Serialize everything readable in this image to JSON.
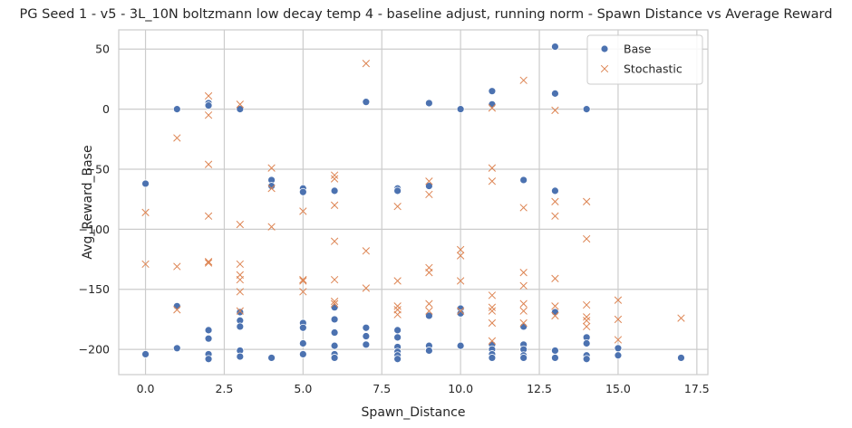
{
  "chart_data": {
    "type": "scatter",
    "title": "PG Seed 1 - v5 - 3L_10N boltzmann low decay temp 4 - baseline adjust, running norm - Spawn Distance vs Average Reward",
    "xlabel": "Spawn_Distance",
    "ylabel": "Avg_Reward_Base",
    "xlim": [
      -0.85,
      17.85
    ],
    "ylim": [
      -221,
      66
    ],
    "xticks": [
      0.0,
      2.5,
      5.0,
      7.5,
      10.0,
      12.5,
      15.0,
      17.5
    ],
    "xtick_labels": [
      "0.0",
      "2.5",
      "5.0",
      "7.5",
      "10.0",
      "12.5",
      "15.0",
      "17.5"
    ],
    "yticks": [
      -200,
      -150,
      -100,
      -50,
      0,
      50
    ],
    "ytick_labels": [
      "−200",
      "−150",
      "−100",
      "−50",
      "0",
      "50"
    ],
    "grid": true,
    "legend_position": "top-right",
    "series": [
      {
        "name": "Base",
        "marker": "circle",
        "color": "#4c72b0",
        "points": [
          [
            0,
            -62
          ],
          [
            0,
            -204
          ],
          [
            1,
            0
          ],
          [
            1,
            -164
          ],
          [
            1,
            -199
          ],
          [
            2,
            5
          ],
          [
            2,
            3
          ],
          [
            2,
            -184
          ],
          [
            2,
            -191
          ],
          [
            2,
            -204
          ],
          [
            2,
            -208
          ],
          [
            3,
            0
          ],
          [
            3,
            -169
          ],
          [
            3,
            -176
          ],
          [
            3,
            -181
          ],
          [
            3,
            -201
          ],
          [
            3,
            -206
          ],
          [
            4,
            -59
          ],
          [
            4,
            -64
          ],
          [
            4,
            -207
          ],
          [
            5,
            -66
          ],
          [
            5,
            -69
          ],
          [
            5,
            -178
          ],
          [
            5,
            -182
          ],
          [
            5,
            -195
          ],
          [
            5,
            -204
          ],
          [
            6,
            -68
          ],
          [
            6,
            -165
          ],
          [
            6,
            -175
          ],
          [
            6,
            -186
          ],
          [
            6,
            -197
          ],
          [
            6,
            -204
          ],
          [
            6,
            -207
          ],
          [
            7,
            6
          ],
          [
            7,
            -182
          ],
          [
            7,
            -189
          ],
          [
            7,
            -196
          ],
          [
            8,
            -66
          ],
          [
            8,
            -68
          ],
          [
            8,
            -184
          ],
          [
            8,
            -190
          ],
          [
            8,
            -198
          ],
          [
            8,
            -202
          ],
          [
            8,
            -205
          ],
          [
            8,
            -208
          ],
          [
            9,
            5
          ],
          [
            9,
            -64
          ],
          [
            9,
            -172
          ],
          [
            9,
            -197
          ],
          [
            9,
            -201
          ],
          [
            10,
            0
          ],
          [
            10,
            -166
          ],
          [
            10,
            -170
          ],
          [
            10,
            -197
          ],
          [
            11,
            15
          ],
          [
            11,
            4
          ],
          [
            11,
            -196
          ],
          [
            11,
            -200
          ],
          [
            11,
            -204
          ],
          [
            11,
            -207
          ],
          [
            12,
            -59
          ],
          [
            12,
            -181
          ],
          [
            12,
            -196
          ],
          [
            12,
            -200
          ],
          [
            12,
            -205
          ],
          [
            12,
            -207
          ],
          [
            13,
            52
          ],
          [
            13,
            13
          ],
          [
            13,
            -68
          ],
          [
            13,
            -169
          ],
          [
            13,
            -201
          ],
          [
            13,
            -207
          ],
          [
            14,
            0
          ],
          [
            14,
            -190
          ],
          [
            14,
            -195
          ],
          [
            14,
            -205
          ],
          [
            14,
            -208
          ],
          [
            15,
            -199
          ],
          [
            15,
            -205
          ],
          [
            17,
            -207
          ]
        ]
      },
      {
        "name": "Stochastic",
        "marker": "x",
        "color": "#dd8452",
        "points": [
          [
            0,
            -86
          ],
          [
            0,
            -129
          ],
          [
            1,
            -24
          ],
          [
            1,
            -131
          ],
          [
            1,
            -167
          ],
          [
            2,
            11
          ],
          [
            2,
            -5
          ],
          [
            2,
            -46
          ],
          [
            2,
            -89
          ],
          [
            2,
            -127
          ],
          [
            2,
            -128
          ],
          [
            3,
            4
          ],
          [
            3,
            -96
          ],
          [
            3,
            -129
          ],
          [
            3,
            -138
          ],
          [
            3,
            -142
          ],
          [
            3,
            -152
          ],
          [
            3,
            -168
          ],
          [
            4,
            -49
          ],
          [
            4,
            -66
          ],
          [
            4,
            -98
          ],
          [
            5,
            -85
          ],
          [
            5,
            -142
          ],
          [
            5,
            -143
          ],
          [
            5,
            -152
          ],
          [
            6,
            -55
          ],
          [
            6,
            -58
          ],
          [
            6,
            -80
          ],
          [
            6,
            -110
          ],
          [
            6,
            -142
          ],
          [
            6,
            -160
          ],
          [
            6,
            -162
          ],
          [
            7,
            38
          ],
          [
            7,
            -118
          ],
          [
            7,
            -149
          ],
          [
            8,
            -81
          ],
          [
            8,
            -143
          ],
          [
            8,
            -164
          ],
          [
            8,
            -167
          ],
          [
            8,
            -171
          ],
          [
            9,
            -60
          ],
          [
            9,
            -71
          ],
          [
            9,
            -132
          ],
          [
            9,
            -136
          ],
          [
            9,
            -162
          ],
          [
            9,
            -168
          ],
          [
            10,
            -117
          ],
          [
            10,
            -122
          ],
          [
            10,
            -143
          ],
          [
            10,
            -168
          ],
          [
            11,
            1
          ],
          [
            11,
            -49
          ],
          [
            11,
            -60
          ],
          [
            11,
            -155
          ],
          [
            11,
            -165
          ],
          [
            11,
            -168
          ],
          [
            11,
            -178
          ],
          [
            11,
            -193
          ],
          [
            12,
            24
          ],
          [
            12,
            -82
          ],
          [
            12,
            -136
          ],
          [
            12,
            -147
          ],
          [
            12,
            -162
          ],
          [
            12,
            -168
          ],
          [
            12,
            -178
          ],
          [
            13,
            -1
          ],
          [
            13,
            -77
          ],
          [
            13,
            -89
          ],
          [
            13,
            -141
          ],
          [
            13,
            -164
          ],
          [
            13,
            -172
          ],
          [
            14,
            -77
          ],
          [
            14,
            -108
          ],
          [
            14,
            -163
          ],
          [
            14,
            -173
          ],
          [
            14,
            -176
          ],
          [
            14,
            -181
          ],
          [
            15,
            -159
          ],
          [
            15,
            -175
          ],
          [
            15,
            -192
          ],
          [
            17,
            -174
          ]
        ]
      }
    ]
  }
}
